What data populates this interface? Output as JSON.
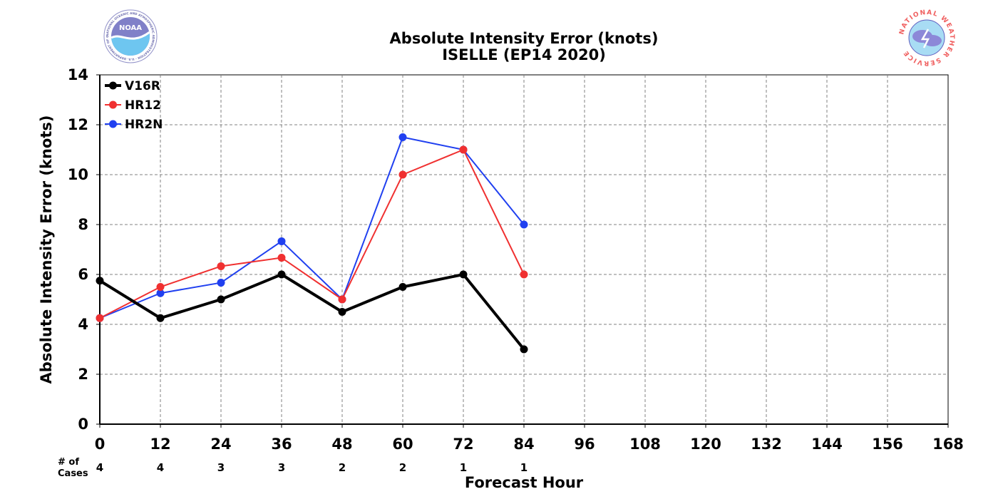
{
  "chart_data": {
    "type": "line",
    "title": "Absolute Intensity Error (knots)",
    "subtitle": "ISELLE (EP14 2020)",
    "xlabel": "Forecast Hour",
    "ylabel": "Absolute Intensity Error (knots)",
    "xlim": [
      0,
      168
    ],
    "ylim": [
      0,
      14
    ],
    "xticks": [
      0,
      12,
      24,
      36,
      48,
      60,
      72,
      84,
      96,
      108,
      120,
      132,
      144,
      156,
      168
    ],
    "xtick_labels": [
      "0",
      "12",
      "24",
      "36",
      "48",
      "60",
      "72",
      "84",
      "96",
      "108",
      "120",
      "132",
      "144",
      "156",
      "168"
    ],
    "yticks": [
      0,
      2,
      4,
      6,
      8,
      10,
      12,
      14
    ],
    "ytick_labels": [
      "0",
      "2",
      "4",
      "6",
      "8",
      "10",
      "12",
      "14"
    ],
    "grid": true,
    "legend_position": "top-left",
    "cases_heading": [
      "# of",
      "Cases"
    ],
    "cases": [
      {
        "x": 0,
        "n": "4"
      },
      {
        "x": 12,
        "n": "4"
      },
      {
        "x": 24,
        "n": "3"
      },
      {
        "x": 36,
        "n": "3"
      },
      {
        "x": 48,
        "n": "2"
      },
      {
        "x": 60,
        "n": "2"
      },
      {
        "x": 72,
        "n": "1"
      },
      {
        "x": 84,
        "n": "1"
      }
    ],
    "series": [
      {
        "name": "V16R",
        "color": "#000000",
        "width": 4,
        "x": [
          0,
          12,
          24,
          36,
          48,
          60,
          72,
          84
        ],
        "values": [
          5.75,
          4.25,
          5.0,
          6.0,
          4.5,
          5.5,
          6.0,
          3.0
        ]
      },
      {
        "name": "HR12",
        "color": "#f03030",
        "width": 2,
        "x": [
          0,
          12,
          24,
          36,
          48,
          60,
          72,
          84
        ],
        "values": [
          4.25,
          5.5,
          6.33,
          6.67,
          5.0,
          10.0,
          11.0,
          6.0
        ]
      },
      {
        "name": "HR2N",
        "color": "#2040f0",
        "width": 2,
        "x": [
          0,
          12,
          24,
          36,
          48,
          60,
          72,
          84
        ],
        "values": [
          4.25,
          5.25,
          5.67,
          7.33,
          5.0,
          11.5,
          11.0,
          8.0
        ]
      }
    ]
  },
  "logos": {
    "left": {
      "icon": "noaa-logo",
      "text": "NOAA",
      "ring_text": "NATIONAL OCEANIC AND ATMOSPHERIC ADMINISTRATION · U.S. DEPARTMENT OF COMMERCE"
    },
    "right": {
      "icon": "nws-logo",
      "ring_text": "NATIONAL WEATHER SERVICE"
    }
  }
}
